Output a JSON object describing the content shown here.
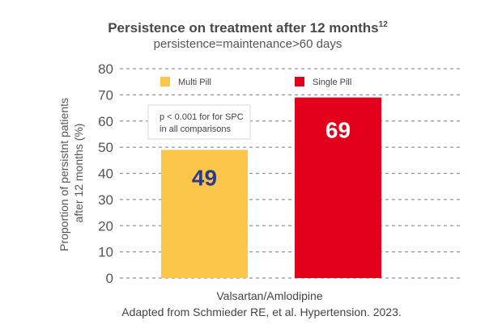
{
  "chart_data": {
    "type": "bar",
    "title": "Persistence on treatment after 12 months",
    "title_superscript": "12",
    "subtitle": "persistence=maintenance>60 days",
    "ylabel_lines": [
      "Proportion of persistnt patients",
      "after 12 months (%)"
    ],
    "xlabel": "Valsartan/Amlodipine",
    "source": "Adapted from Schmieder RE, et al. Hypertension. 2023.",
    "ylim": [
      0,
      80
    ],
    "yticks": [
      "0",
      "10",
      "20",
      "30",
      "40",
      "50",
      "60",
      "70",
      "80"
    ],
    "grid": true,
    "grid_style": "dashed",
    "legend_position": "top",
    "series": [
      {
        "name": "Multi Pill",
        "value": 49,
        "label": "49",
        "color": "#fcc64a",
        "label_color": "#2b3a8c"
      },
      {
        "name": "Single Pill",
        "value": 69,
        "label": "69",
        "color": "#e2001a",
        "label_color": "#ffffff"
      }
    ],
    "annotation_lines": [
      "p < 0.001 for for SPC",
      "in all comparisons"
    ]
  }
}
